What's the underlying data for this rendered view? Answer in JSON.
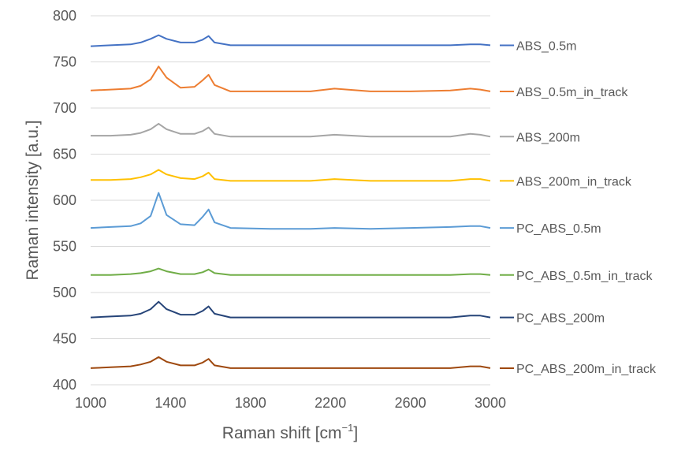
{
  "chart_data": {
    "type": "line",
    "title": "",
    "xlabel": "Raman shift [cm",
    "xlabel_superscript": "−1",
    "xlabel_suffix": "]",
    "ylabel": "Raman intensity [a.u.]",
    "xlim": [
      1000,
      3000
    ],
    "ylim": [
      400,
      800
    ],
    "xticks": [
      1000,
      1400,
      1800,
      2200,
      2600,
      3000
    ],
    "yticks": [
      400,
      450,
      500,
      550,
      600,
      650,
      700,
      750,
      800
    ],
    "grid": "horizontal",
    "legend_position": "right, beside each series",
    "x": [
      1000,
      1100,
      1200,
      1250,
      1300,
      1340,
      1380,
      1450,
      1520,
      1560,
      1590,
      1620,
      1700,
      1900,
      2100,
      2220,
      2400,
      2600,
      2800,
      2900,
      2950,
      3000
    ],
    "series": [
      {
        "name": "ABS_0.5m",
        "color": "#4472C4",
        "values": [
          767,
          768,
          769,
          771,
          775,
          779,
          775,
          771,
          771,
          774,
          778,
          771,
          768,
          768,
          768,
          768,
          768,
          768,
          768,
          769,
          769,
          768
        ]
      },
      {
        "name": "ABS_0.5m_in_track",
        "color": "#ED7D31",
        "values": [
          719,
          720,
          721,
          724,
          731,
          745,
          733,
          722,
          723,
          730,
          736,
          725,
          718,
          718,
          718,
          721,
          718,
          718,
          719,
          721,
          720,
          718
        ]
      },
      {
        "name": "ABS_200m",
        "color": "#A5A5A5",
        "values": [
          670,
          670,
          671,
          673,
          677,
          683,
          677,
          672,
          672,
          675,
          679,
          672,
          669,
          669,
          669,
          671,
          669,
          669,
          669,
          672,
          671,
          669
        ]
      },
      {
        "name": "ABS_200m_in_track",
        "color": "#FFC000",
        "values": [
          622,
          622,
          623,
          625,
          628,
          633,
          628,
          624,
          623,
          626,
          630,
          623,
          621,
          621,
          621,
          623,
          621,
          621,
          621,
          623,
          623,
          621
        ]
      },
      {
        "name": "PC_ABS_0.5m",
        "color": "#5B9BD5",
        "values": [
          570,
          571,
          572,
          575,
          583,
          608,
          584,
          574,
          573,
          582,
          590,
          576,
          570,
          569,
          569,
          570,
          569,
          570,
          571,
          572,
          572,
          570
        ]
      },
      {
        "name": "PC_ABS_0.5m_in_track",
        "color": "#70AD47",
        "values": [
          519,
          519,
          520,
          521,
          523,
          526,
          523,
          520,
          520,
          522,
          525,
          521,
          519,
          519,
          519,
          519,
          519,
          519,
          519,
          520,
          520,
          519
        ]
      },
      {
        "name": "PC_ABS_200m",
        "color": "#264478",
        "values": [
          473,
          474,
          475,
          477,
          482,
          490,
          482,
          476,
          476,
          480,
          485,
          477,
          473,
          473,
          473,
          473,
          473,
          473,
          473,
          475,
          475,
          473
        ]
      },
      {
        "name": "PC_ABS_200m_in_track",
        "color": "#9E480E",
        "values": [
          418,
          419,
          420,
          422,
          425,
          430,
          425,
          421,
          421,
          424,
          428,
          421,
          418,
          418,
          418,
          418,
          418,
          418,
          418,
          420,
          420,
          418
        ]
      }
    ]
  }
}
